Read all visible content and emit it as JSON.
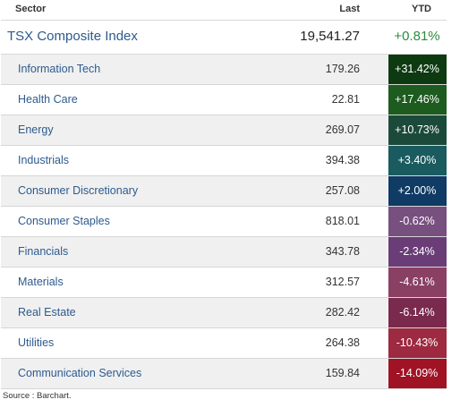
{
  "header": {
    "sector": "Sector",
    "last": "Last",
    "ytd": "YTD"
  },
  "index": {
    "name": "TSX Composite Index",
    "last": "19,541.27",
    "ytd": "+0.81%"
  },
  "sectors": [
    {
      "name": "Information Tech",
      "last": "179.26",
      "ytd": "+31.42%",
      "color": "#0e3a12"
    },
    {
      "name": "Health Care",
      "last": "22.81",
      "ytd": "+17.46%",
      "color": "#1d5b1f"
    },
    {
      "name": "Energy",
      "last": "269.07",
      "ytd": "+10.73%",
      "color": "#1c4a3a"
    },
    {
      "name": "Industrials",
      "last": "394.38",
      "ytd": "+3.40%",
      "color": "#1a5b5f"
    },
    {
      "name": "Consumer Discretionary",
      "last": "257.08",
      "ytd": "+2.00%",
      "color": "#0f3b65"
    },
    {
      "name": "Consumer Staples",
      "last": "818.01",
      "ytd": "-0.62%",
      "color": "#77507f"
    },
    {
      "name": "Financials",
      "last": "343.78",
      "ytd": "-2.34%",
      "color": "#6a3d77"
    },
    {
      "name": "Materials",
      "last": "312.57",
      "ytd": "-4.61%",
      "color": "#8a4063"
    },
    {
      "name": "Real Estate",
      "last": "282.42",
      "ytd": "-6.14%",
      "color": "#7a2a4d"
    },
    {
      "name": "Utilities",
      "last": "264.38",
      "ytd": "-10.43%",
      "color": "#9d2a40"
    },
    {
      "name": "Communication Services",
      "last": "159.84",
      "ytd": "-14.09%",
      "color": "#9f1325"
    }
  ],
  "source": "Source : Barchart."
}
